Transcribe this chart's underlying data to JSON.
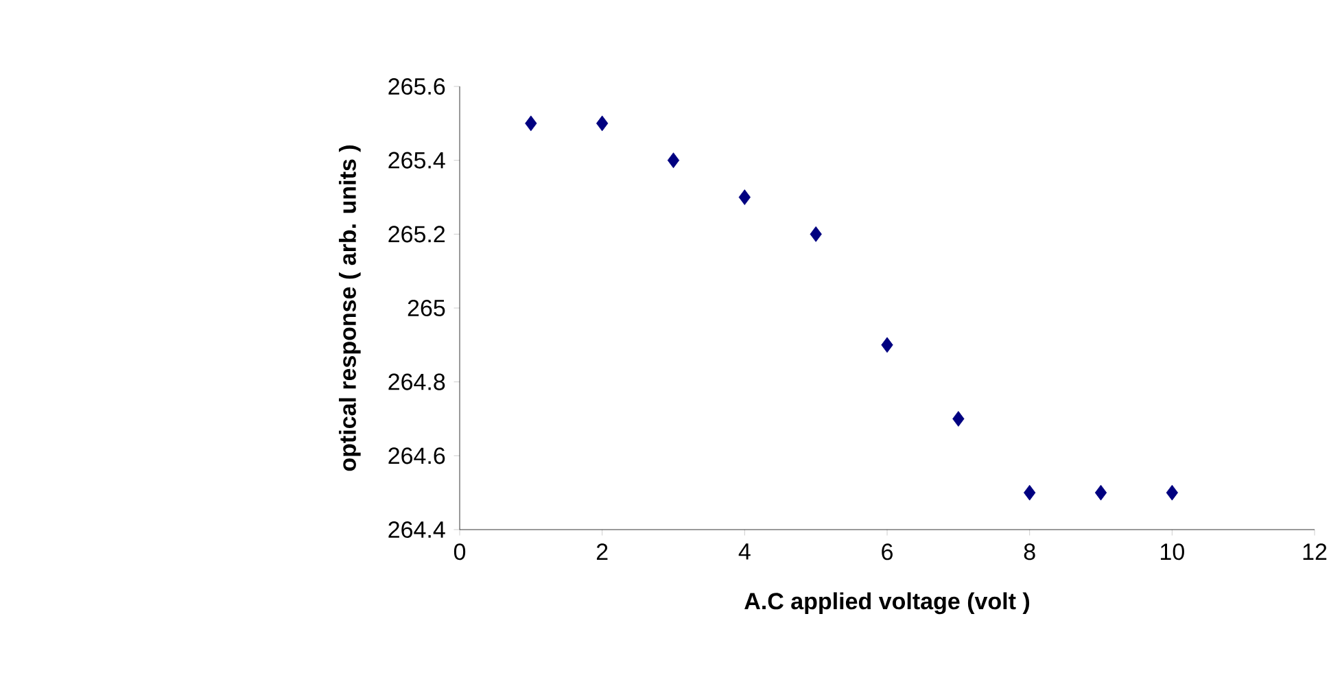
{
  "chart_data": {
    "type": "scatter",
    "xlabel": "A.C applied voltage (volt )",
    "ylabel": "optical response ( arb. units )",
    "x": [
      1,
      2,
      3,
      4,
      5,
      6,
      7,
      8,
      9,
      10
    ],
    "series": [
      {
        "color": "#000080",
        "values": [
          265.5,
          265.5,
          265.4,
          265.3,
          265.2,
          264.9,
          264.7,
          264.5,
          264.5,
          264.5
        ]
      }
    ],
    "xlim": [
      0,
      12
    ],
    "ylim": [
      264.4,
      265.6
    ],
    "xticks": [
      0,
      2,
      4,
      6,
      8,
      10,
      12
    ],
    "yticks": [
      264.4,
      264.6,
      264.8,
      265,
      265.2,
      265.4,
      265.6
    ],
    "marker": "diamond",
    "grid": false
  }
}
